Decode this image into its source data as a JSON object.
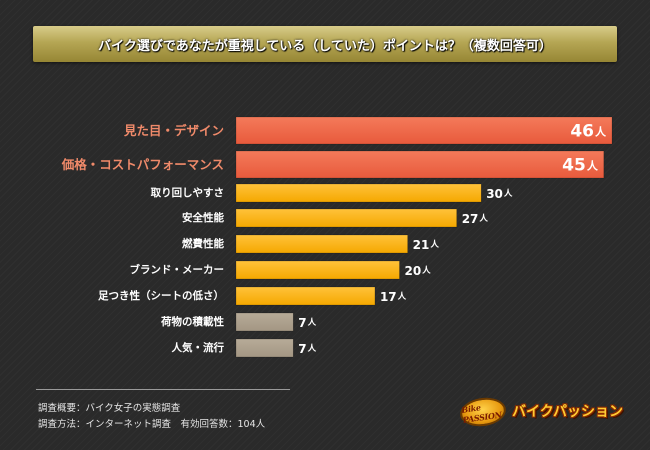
{
  "chart_data": {
    "type": "bar",
    "orientation": "horizontal",
    "title": "バイク選びであなたが重視している（していた）ポイントは？（複数回答可）",
    "categories": [
      "見た目・デザイン",
      "価格・コストパフォーマンス",
      "取り回しやすさ",
      "安全性能",
      "燃費性能",
      "ブランド・メーカー",
      "足つき性（シートの低さ）",
      "荷物の積載性",
      "人気・流行"
    ],
    "values": [
      46,
      45,
      30,
      27,
      21,
      20,
      17,
      7,
      7
    ],
    "value_unit": "人",
    "xlim": [
      0,
      46
    ],
    "grid": false,
    "highlight_indices": [
      0,
      1
    ],
    "colors": {
      "highlight_bar": "#e85a3c",
      "highlight_label": "#f08a6a",
      "standard_bar": "#f5a800",
      "low_bar": "#a39683",
      "standard_label": "#ffffff"
    }
  },
  "footer": {
    "survey_summary": "調査概要：バイク女子の実態調査",
    "survey_method": "調査方法：インターネット調査　有効回答数：104人"
  },
  "logo": {
    "emblem_text": "Bike PASSION",
    "wordmark": "バイクパッション"
  }
}
